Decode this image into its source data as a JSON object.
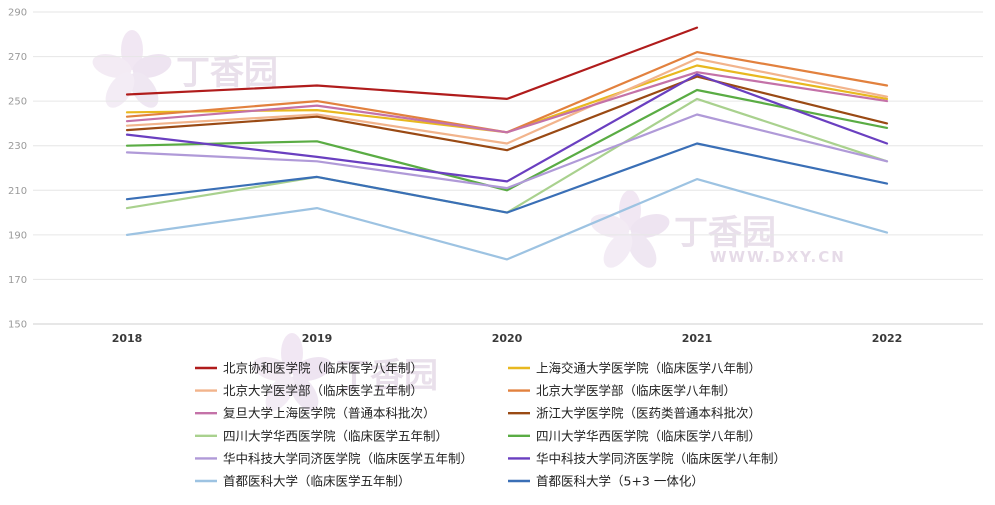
{
  "chart_data": {
    "type": "line",
    "title": "",
    "xlabel": "",
    "ylabel": "",
    "categories": [
      "2018",
      "2019",
      "2020",
      "2021",
      "2022"
    ],
    "ylim": [
      150,
      290
    ],
    "yticks": [
      150,
      170,
      190,
      210,
      230,
      250,
      270,
      290
    ],
    "grid": true,
    "legend_position": "bottom",
    "series": [
      {
        "name": "北京协和医学院（临床医学八年制）",
        "color": "#b01c1c",
        "values": [
          253,
          257,
          251,
          283,
          null
        ]
      },
      {
        "name": "上海交通大学医学院（临床医学八年制）",
        "color": "#e8b820",
        "values": [
          245,
          246,
          236,
          266,
          251
        ]
      },
      {
        "name": "北京大学医学部（临床医学五年制）",
        "color": "#f2b48c",
        "values": [
          239,
          244,
          231,
          269,
          252
        ]
      },
      {
        "name": "北京大学医学部（临床医学八年制）",
        "color": "#e2813e",
        "values": [
          243,
          250,
          236,
          272,
          257
        ]
      },
      {
        "name": "复旦大学上海医学院（普通本科批次）",
        "color": "#c472a8",
        "values": [
          241,
          248,
          236,
          263,
          250
        ]
      },
      {
        "name": "浙江大学医学院（医药类普通本科批次）",
        "color": "#9a4a14",
        "values": [
          237,
          243,
          228,
          261,
          240
        ]
      },
      {
        "name": "四川大学华西医学院（临床医学五年制）",
        "color": "#a9d18e",
        "values": [
          202,
          216,
          200,
          251,
          223
        ]
      },
      {
        "name": "四川大学华西医学院（临床医学八年制）",
        "color": "#5aac44",
        "values": [
          230,
          232,
          210,
          255,
          238
        ]
      },
      {
        "name": "华中科技大学同济医学院（临床医学五年制）",
        "color": "#b09ad8",
        "values": [
          227,
          223,
          211,
          244,
          223
        ]
      },
      {
        "name": "华中科技大学同济医学院（临床医学八年制）",
        "color": "#6a3fc0",
        "values": [
          235,
          225,
          214,
          262,
          231
        ]
      },
      {
        "name": "首都医科大学（临床医学五年制）",
        "color": "#9dc3e2",
        "values": [
          190,
          202,
          179,
          215,
          191
        ]
      },
      {
        "name": "首都医科大学（5+3 一体化）",
        "color": "#3a6fb6",
        "values": [
          206,
          216,
          200,
          231,
          213
        ]
      }
    ]
  },
  "watermark": {
    "brand": "丁香园",
    "site": "WWW.DXY.CN"
  }
}
